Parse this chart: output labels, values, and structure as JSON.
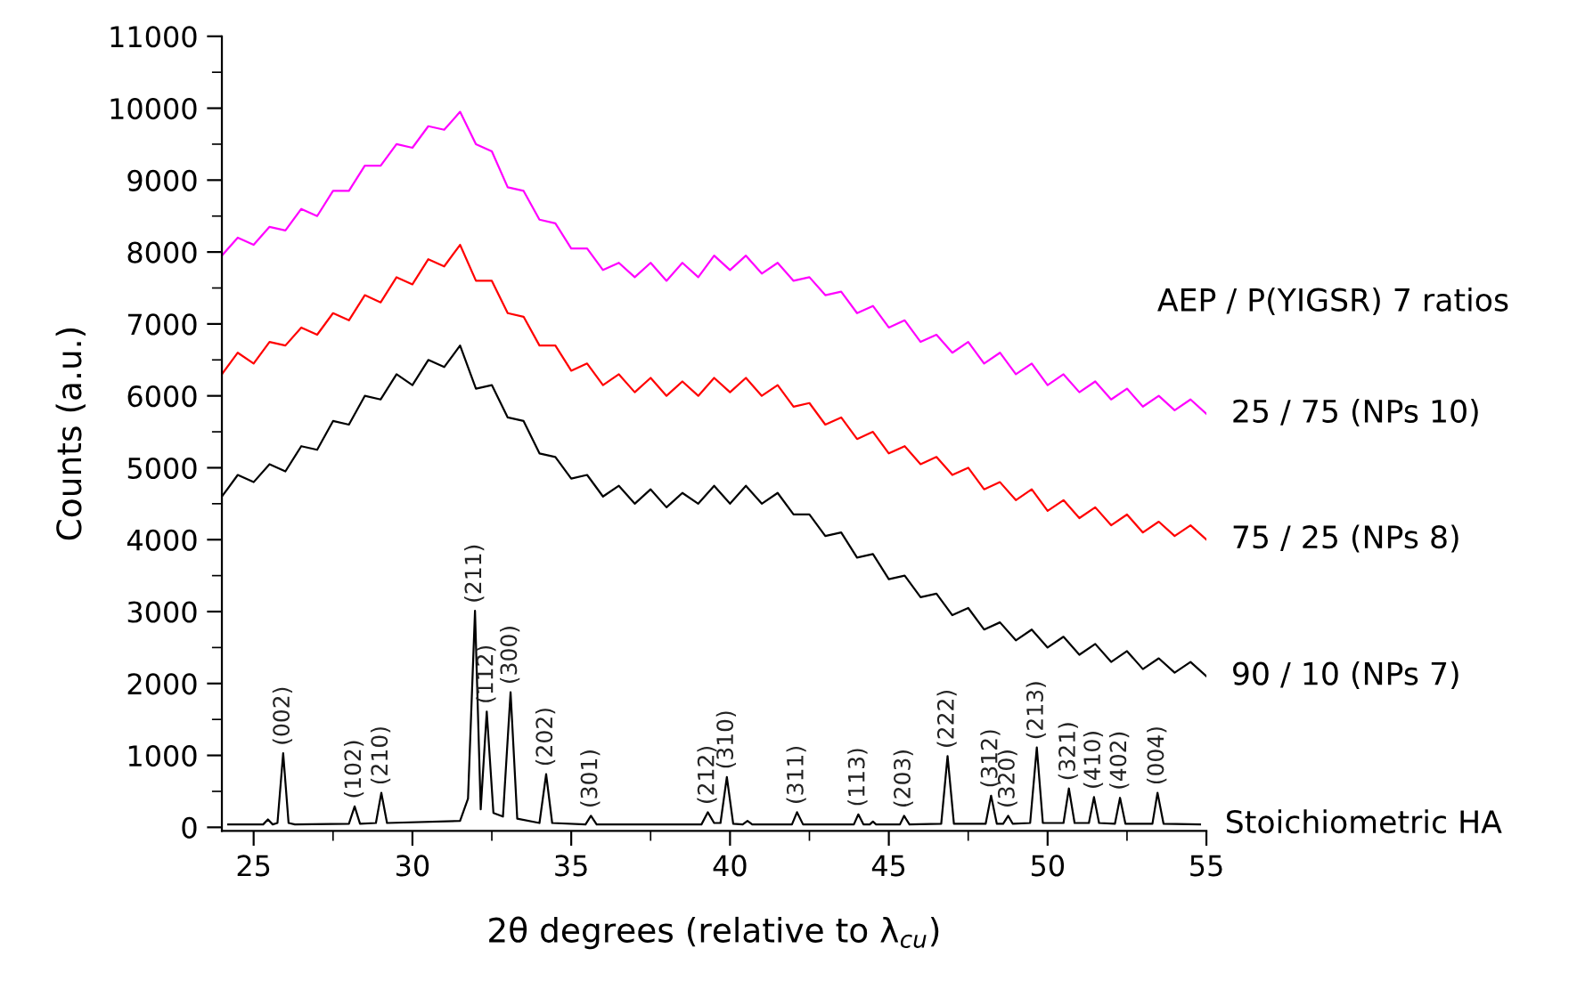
{
  "chart_data": {
    "type": "line",
    "xlabel": "2θ degrees (relative to λ$_{cu}$)",
    "ylabel": "Counts (a.u.)",
    "legend_title": "AEP / P(YIGSR) 7 ratios",
    "xlim": [
      24,
      55
    ],
    "xticks": [
      25,
      30,
      35,
      40,
      45,
      50,
      55
    ],
    "ylim": [
      -50,
      11000
    ],
    "yticks": [
      0,
      1000,
      2000,
      3000,
      4000,
      5000,
      6000,
      7000,
      8000,
      9000,
      10000,
      11000
    ],
    "grid": false,
    "legend": "right",
    "line_style": "solid",
    "marker": "none",
    "series": [
      {
        "name": "25 / 75 (NPs 10)",
        "color": "#ff00ff",
        "x": [
          24,
          24.5,
          25,
          25.5,
          26,
          26.5,
          27,
          27.5,
          28,
          28.5,
          29,
          29.5,
          30,
          30.5,
          31,
          31.5,
          32,
          32.5,
          33,
          33.5,
          34,
          34.5,
          35,
          35.5,
          36,
          36.5,
          37,
          37.5,
          38,
          38.5,
          39,
          39.5,
          40,
          40.5,
          41,
          41.5,
          42,
          42.5,
          43,
          43.5,
          44,
          44.5,
          45,
          45.5,
          46,
          46.5,
          47,
          47.5,
          48,
          48.5,
          49,
          49.5,
          50,
          50.5,
          51,
          51.5,
          52,
          52.5,
          53,
          53.5,
          54,
          54.5,
          55
        ],
        "values": [
          7950,
          8200,
          8100,
          8350,
          8300,
          8600,
          8500,
          8850,
          8850,
          9200,
          9200,
          9500,
          9450,
          9750,
          9700,
          9950,
          9500,
          9400,
          8900,
          8850,
          8450,
          8400,
          8050,
          8050,
          7750,
          7850,
          7650,
          7850,
          7600,
          7850,
          7650,
          7950,
          7750,
          7950,
          7700,
          7850,
          7600,
          7650,
          7400,
          7450,
          7150,
          7250,
          6950,
          7050,
          6750,
          6850,
          6600,
          6750,
          6450,
          6600,
          6300,
          6450,
          6150,
          6300,
          6050,
          6200,
          5950,
          6100,
          5850,
          6000,
          5800,
          5950,
          5750
        ]
      },
      {
        "name": "75 / 25 (NPs 8)",
        "color": "#ff0000",
        "x": [
          24,
          24.5,
          25,
          25.5,
          26,
          26.5,
          27,
          27.5,
          28,
          28.5,
          29,
          29.5,
          30,
          30.5,
          31,
          31.5,
          32,
          32.5,
          33,
          33.5,
          34,
          34.5,
          35,
          35.5,
          36,
          36.5,
          37,
          37.5,
          38,
          38.5,
          39,
          39.5,
          40,
          40.5,
          41,
          41.5,
          42,
          42.5,
          43,
          43.5,
          44,
          44.5,
          45,
          45.5,
          46,
          46.5,
          47,
          47.5,
          48,
          48.5,
          49,
          49.5,
          50,
          50.5,
          51,
          51.5,
          52,
          52.5,
          53,
          53.5,
          54,
          54.5,
          55
        ],
        "values": [
          6300,
          6600,
          6450,
          6750,
          6700,
          6950,
          6850,
          7150,
          7050,
          7400,
          7300,
          7650,
          7550,
          7900,
          7800,
          8100,
          7600,
          7600,
          7150,
          7100,
          6700,
          6700,
          6350,
          6450,
          6150,
          6300,
          6050,
          6250,
          6000,
          6200,
          6000,
          6250,
          6050,
          6250,
          6000,
          6150,
          5850,
          5900,
          5600,
          5700,
          5400,
          5500,
          5200,
          5300,
          5050,
          5150,
          4900,
          5000,
          4700,
          4800,
          4550,
          4700,
          4400,
          4550,
          4300,
          4450,
          4200,
          4350,
          4100,
          4250,
          4050,
          4200,
          4000
        ]
      },
      {
        "name": "90 / 10 (NPs 7)",
        "color": "#000000",
        "x": [
          24,
          24.5,
          25,
          25.5,
          26,
          26.5,
          27,
          27.5,
          28,
          28.5,
          29,
          29.5,
          30,
          30.5,
          31,
          31.5,
          32,
          32.5,
          33,
          33.5,
          34,
          34.5,
          35,
          35.5,
          36,
          36.5,
          37,
          37.5,
          38,
          38.5,
          39,
          39.5,
          40,
          40.5,
          41,
          41.5,
          42,
          42.5,
          43,
          43.5,
          44,
          44.5,
          45,
          45.5,
          46,
          46.5,
          47,
          47.5,
          48,
          48.5,
          49,
          49.5,
          50,
          50.5,
          51,
          51.5,
          52,
          52.5,
          53,
          53.5,
          54,
          54.5,
          55
        ],
        "values": [
          4600,
          4900,
          4800,
          5050,
          4950,
          5300,
          5250,
          5650,
          5600,
          6000,
          5950,
          6300,
          6150,
          6500,
          6400,
          6700,
          6100,
          6150,
          5700,
          5650,
          5200,
          5150,
          4850,
          4900,
          4600,
          4750,
          4500,
          4700,
          4450,
          4650,
          4500,
          4750,
          4500,
          4750,
          4500,
          4650,
          4350,
          4350,
          4050,
          4100,
          3750,
          3800,
          3450,
          3500,
          3200,
          3250,
          2950,
          3050,
          2750,
          2850,
          2600,
          2750,
          2500,
          2650,
          2400,
          2550,
          2300,
          2450,
          2200,
          2350,
          2150,
          2300,
          2100
        ]
      },
      {
        "name": "Stoichiometric HA",
        "color": "#000000",
        "x": [
          24.2,
          25.3,
          25.45,
          25.6,
          25.75,
          25.93,
          26.1,
          26.3,
          28.0,
          28.18,
          28.35,
          28.85,
          29.02,
          29.2,
          31.5,
          31.75,
          31.97,
          32.15,
          32.34,
          32.55,
          32.85,
          33.09,
          33.3,
          34.0,
          34.21,
          34.4,
          35.45,
          35.62,
          35.8,
          39.1,
          39.3,
          39.5,
          39.7,
          39.9,
          40.1,
          40.4,
          40.55,
          40.7,
          41.95,
          42.11,
          42.3,
          43.9,
          44.04,
          44.2,
          44.4,
          44.5,
          44.6,
          45.35,
          45.48,
          45.65,
          46.65,
          46.85,
          47.05,
          48.05,
          48.22,
          48.4,
          48.6,
          48.76,
          48.9,
          49.45,
          49.66,
          49.85,
          50.5,
          50.67,
          50.85,
          51.3,
          51.46,
          51.62,
          52.12,
          52.28,
          52.45,
          53.3,
          53.46,
          53.65,
          54.8
        ],
        "values": [
          40,
          40,
          110,
          40,
          60,
          1030,
          60,
          40,
          50,
          290,
          50,
          60,
          480,
          60,
          90,
          400,
          3010,
          250,
          1610,
          200,
          150,
          1880,
          120,
          60,
          740,
          60,
          40,
          160,
          40,
          40,
          210,
          60,
          60,
          700,
          50,
          40,
          90,
          40,
          40,
          210,
          40,
          40,
          180,
          40,
          40,
          80,
          40,
          40,
          160,
          40,
          50,
          990,
          50,
          50,
          440,
          50,
          50,
          160,
          50,
          60,
          1110,
          60,
          60,
          540,
          60,
          60,
          420,
          60,
          50,
          410,
          50,
          50,
          480,
          50,
          40
        ]
      }
    ],
    "annotations": [
      {
        "text": "(002)",
        "x": 25.93,
        "y": 1030
      },
      {
        "text": "(102)",
        "x": 28.18,
        "y": 290
      },
      {
        "text": "(210)",
        "x": 29.02,
        "y": 480
      },
      {
        "text": "(211)",
        "x": 31.97,
        "y": 3010
      },
      {
        "text": "(112)",
        "x": 32.34,
        "y": 1610
      },
      {
        "text": "(300)",
        "x": 33.09,
        "y": 1880
      },
      {
        "text": "(202)",
        "x": 34.21,
        "y": 740
      },
      {
        "text": "(301)",
        "x": 35.62,
        "y": 160
      },
      {
        "text": "(212)",
        "x": 39.3,
        "y": 210
      },
      {
        "text": "(310)",
        "x": 39.9,
        "y": 700
      },
      {
        "text": "(311)",
        "x": 42.11,
        "y": 210
      },
      {
        "text": "(113)",
        "x": 44.04,
        "y": 180
      },
      {
        "text": "(203)",
        "x": 45.48,
        "y": 160
      },
      {
        "text": "(222)",
        "x": 46.85,
        "y": 990
      },
      {
        "text": "(312)",
        "x": 48.22,
        "y": 440
      },
      {
        "text": "(320)",
        "x": 48.76,
        "y": 160
      },
      {
        "text": "(213)",
        "x": 49.66,
        "y": 1110
      },
      {
        "text": "(321)",
        "x": 50.67,
        "y": 540
      },
      {
        "text": "(410)",
        "x": 51.46,
        "y": 420
      },
      {
        "text": "(402)",
        "x": 52.28,
        "y": 410
      },
      {
        "text": "(004)",
        "x": 53.46,
        "y": 480
      }
    ]
  }
}
